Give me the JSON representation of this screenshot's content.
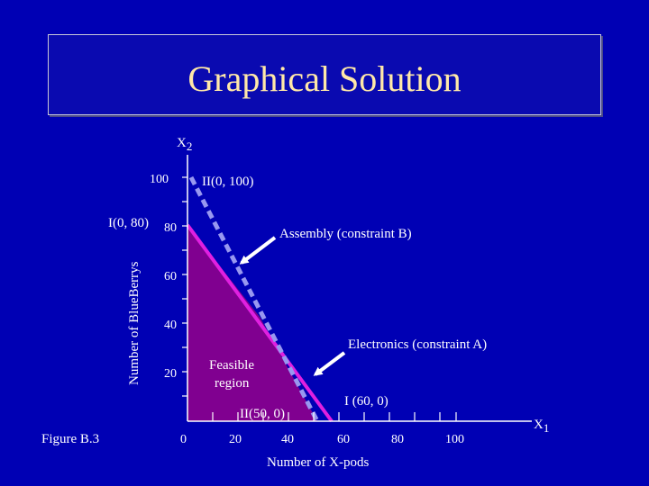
{
  "slide": {
    "title": "Graphical Solution",
    "figure_label": "Figure B.3"
  },
  "axes": {
    "y_symbol": "X",
    "y_subscript": "2",
    "x_symbol": "X",
    "x_subscript": "1",
    "y_label": "Number of BlueBerrys",
    "x_label": "Number of X-pods",
    "x_ticks": [
      "0",
      "20",
      "40",
      "60",
      "80",
      "100"
    ],
    "y_ticks": [
      "20",
      "40",
      "60",
      "80",
      "100"
    ]
  },
  "annotations": {
    "point_ii_top": "II(0, 100)",
    "point_i_top": "I(0, 80)",
    "assembly": "Assembly (constraint B)",
    "electronics": "Electronics (constraint A)",
    "feasible_line1": "Feasible",
    "feasible_line2": "region",
    "point_ii_bottom": "II(50, 0)",
    "point_i_bottom": "I (60, 0)"
  },
  "colors": {
    "background": "#0000b4",
    "title": "#ffe8a8",
    "feasible_region": "#800090",
    "electronics_line": "#e020e0",
    "assembly_line": "#9090f0",
    "arrow": "#ffffff"
  }
}
